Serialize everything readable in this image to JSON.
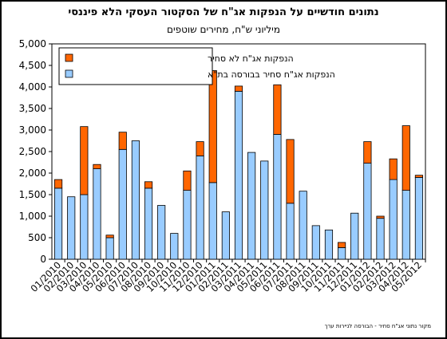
{
  "chart_data": {
    "type": "bar",
    "stacked": true,
    "title": "נתונים חודשיים על הנפקות אג\"ח של הסקטור העסקי הלא פיננסי",
    "subtitle": "מיליוני ש\"ח, מחירים שוטפים",
    "source": "מקור נתוני אג\"ח סחיר - הבורסה לניירות ערך",
    "categories": [
      "01/2010",
      "02/2010",
      "03/2010",
      "04/2010",
      "05/2010",
      "06/2010",
      "07/2010",
      "08/2010",
      "09/2010",
      "10/2010",
      "11/2010",
      "12/2010",
      "01/2011",
      "02/2011",
      "03/2011",
      "04/2011",
      "05/2011",
      "06/2011",
      "07/2011",
      "08/2011",
      "09/2011",
      "10/2011",
      "11/2011",
      "12/2011",
      "01/2012",
      "02/2012",
      "03/2012",
      "04/2012",
      "05/2012"
    ],
    "series": [
      {
        "name": "הנפקות אג\"ח סחיר בבורסה בת\"א",
        "color": "#99ccff",
        "values": [
          1650,
          1450,
          1500,
          2100,
          500,
          2550,
          2750,
          1650,
          1250,
          600,
          1600,
          2400,
          1780,
          1100,
          3900,
          2480,
          2280,
          2900,
          1300,
          1580,
          780,
          680,
          270,
          1070,
          2230,
          950,
          1850,
          1600,
          1900
        ]
      },
      {
        "name": "הנפקות אג\"ח לא סחיר",
        "color": "#ff6600",
        "values": [
          200,
          0,
          1580,
          100,
          60,
          400,
          0,
          150,
          0,
          0,
          450,
          330,
          2600,
          0,
          120,
          0,
          0,
          1150,
          1480,
          0,
          0,
          0,
          120,
          0,
          500,
          50,
          480,
          1500,
          50
        ]
      }
    ],
    "ylim": [
      0,
      5000
    ],
    "yticks": [
      "0",
      "500",
      "1,000",
      "1,500",
      "2,000",
      "2,500",
      "3,000",
      "3,500",
      "4,000",
      "4,500",
      "5,000"
    ],
    "ytick_values": [
      0,
      500,
      1000,
      1500,
      2000,
      2500,
      3000,
      3500,
      4000,
      4500,
      5000
    ],
    "grid": false,
    "legend_position": "top-left"
  }
}
